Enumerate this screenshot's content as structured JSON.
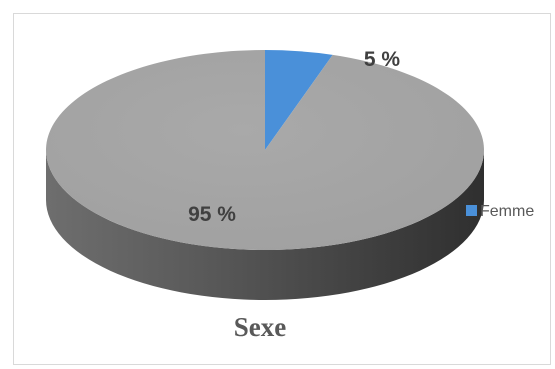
{
  "chart_data": {
    "type": "pie",
    "title": "Sexe",
    "slices": [
      {
        "label": "Femme",
        "value": 5,
        "display": "5 %",
        "color": "#4a90d9"
      },
      {
        "value": 95,
        "display": "95 %",
        "color": "#a6a6a6"
      }
    ],
    "legend": {
      "position": "right",
      "entries": [
        "Femme"
      ]
    },
    "style": "3d-tilted"
  }
}
